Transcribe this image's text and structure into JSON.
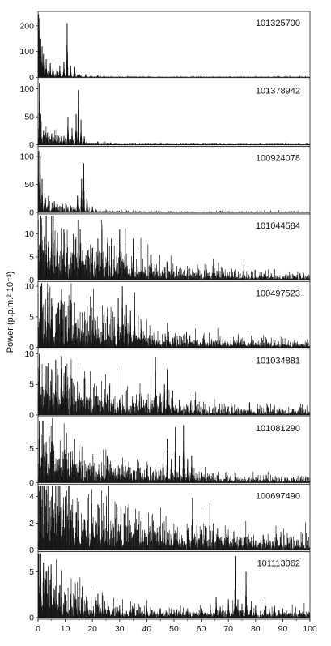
{
  "ylabel": "Power (p.p.m.² 10⁻³)",
  "x_ticks": [
    "0",
    "10",
    "20",
    "30",
    "40",
    "50",
    "60",
    "70",
    "80",
    "90",
    "100"
  ],
  "chart_data": [
    {
      "type": "line",
      "label": "101325700",
      "xlim": [
        0,
        100
      ],
      "ylim": [
        0,
        250
      ],
      "yticks": [
        "0",
        "100",
        "200"
      ],
      "ytick_values": [
        0,
        100,
        200
      ],
      "peaks": [
        [
          0.2,
          245
        ],
        [
          0.6,
          230
        ],
        [
          1.0,
          150
        ],
        [
          1.5,
          120
        ],
        [
          2.0,
          90
        ],
        [
          3.0,
          70
        ],
        [
          4.5,
          55
        ],
        [
          5.5,
          60
        ],
        [
          7.0,
          50
        ],
        [
          8.0,
          45
        ],
        [
          9.5,
          60
        ],
        [
          10.7,
          210
        ],
        [
          12.0,
          45
        ],
        [
          13.5,
          40
        ],
        [
          15.0,
          20
        ],
        [
          17.5,
          12
        ],
        [
          22.0,
          8
        ]
      ],
      "noise": {
        "base": 18,
        "decay": 6,
        "floor": 1.5
      }
    },
    {
      "type": "line",
      "label": "101378942",
      "xlim": [
        0,
        100
      ],
      "ylim": [
        0,
        115
      ],
      "yticks": [
        "0",
        "50",
        "100"
      ],
      "ytick_values": [
        0,
        50,
        100
      ],
      "peaks": [
        [
          0.5,
          110
        ],
        [
          1.0,
          55
        ],
        [
          2.0,
          25
        ],
        [
          3.5,
          22
        ],
        [
          5.0,
          20
        ],
        [
          7.0,
          18
        ],
        [
          9.5,
          16
        ],
        [
          11.0,
          50
        ],
        [
          12.5,
          30
        ],
        [
          14.0,
          55
        ],
        [
          14.8,
          98
        ],
        [
          15.8,
          45
        ],
        [
          17.0,
          15
        ],
        [
          22.0,
          6
        ]
      ],
      "noise": {
        "base": 14,
        "decay": 8,
        "floor": 0.8
      }
    },
    {
      "type": "line",
      "label": "100924078",
      "xlim": [
        0,
        100
      ],
      "ylim": [
        0,
        115
      ],
      "yticks": [
        "0",
        "50",
        "100"
      ],
      "ytick_values": [
        0,
        50,
        100
      ],
      "peaks": [
        [
          0.3,
          110
        ],
        [
          0.8,
          100
        ],
        [
          1.5,
          60
        ],
        [
          2.5,
          35
        ],
        [
          4.0,
          25
        ],
        [
          6.0,
          20
        ],
        [
          9.0,
          15
        ],
        [
          12.0,
          12
        ],
        [
          14.5,
          30
        ],
        [
          16.0,
          60
        ],
        [
          16.8,
          88
        ],
        [
          18.0,
          40
        ],
        [
          20.0,
          10
        ],
        [
          25.0,
          5
        ]
      ],
      "noise": {
        "base": 16,
        "decay": 7,
        "floor": 0.8
      }
    },
    {
      "type": "line",
      "label": "101044584",
      "xlim": [
        0,
        100
      ],
      "ylim": [
        0,
        14
      ],
      "yticks": [
        "0",
        "5",
        "10"
      ],
      "ytick_values": [
        0,
        5,
        10
      ],
      "peaks": [
        [
          1.0,
          14
        ],
        [
          3.0,
          14
        ],
        [
          5.0,
          14
        ],
        [
          7.0,
          12
        ],
        [
          9.5,
          11
        ],
        [
          13.0,
          10
        ],
        [
          15.5,
          11
        ],
        [
          18.0,
          8
        ],
        [
          20.0,
          7
        ],
        [
          22.0,
          9
        ],
        [
          23.5,
          11
        ],
        [
          25.5,
          8
        ],
        [
          27.0,
          9
        ],
        [
          29.0,
          8
        ],
        [
          30.0,
          11
        ],
        [
          32.0,
          8
        ],
        [
          35.0,
          9
        ],
        [
          38.0,
          2
        ],
        [
          42.0,
          1.2
        ]
      ],
      "noise": {
        "base": 5.5,
        "decay": 30,
        "floor": 0.3
      }
    },
    {
      "type": "line",
      "label": "100497523",
      "xlim": [
        0,
        100
      ],
      "ylim": [
        0,
        10.5
      ],
      "yticks": [
        "0",
        "5",
        "10"
      ],
      "ytick_values": [
        0,
        5,
        10
      ],
      "peaks": [
        [
          1.0,
          10
        ],
        [
          3.5,
          9
        ],
        [
          5.0,
          8
        ],
        [
          7.0,
          7
        ],
        [
          8.5,
          6.5
        ],
        [
          10.0,
          5
        ],
        [
          14.0,
          4
        ],
        [
          20.0,
          3
        ],
        [
          24.0,
          4
        ],
        [
          28.0,
          5
        ],
        [
          29.5,
          8
        ],
        [
          31.0,
          10
        ],
        [
          32.5,
          7
        ],
        [
          34.0,
          6
        ],
        [
          35.5,
          9
        ],
        [
          38.0,
          3
        ],
        [
          42.0,
          2
        ],
        [
          48.0,
          1
        ]
      ],
      "noise": {
        "base": 4,
        "decay": 30,
        "floor": 0.3
      }
    },
    {
      "type": "line",
      "label": "101034881",
      "xlim": [
        0,
        100
      ],
      "ylim": [
        0,
        10.5
      ],
      "yticks": [
        "0",
        "5",
        "10"
      ],
      "ytick_values": [
        0,
        5,
        10
      ],
      "peaks": [
        [
          0.5,
          10
        ],
        [
          3.0,
          8
        ],
        [
          5.0,
          7.5
        ],
        [
          6.5,
          9
        ],
        [
          8.5,
          6
        ],
        [
          10.0,
          8
        ],
        [
          12.5,
          6
        ],
        [
          15.0,
          5
        ],
        [
          18.0,
          4.5
        ],
        [
          22.0,
          3
        ],
        [
          27.0,
          2
        ],
        [
          30.0,
          2.5
        ],
        [
          35.0,
          2
        ],
        [
          38.0,
          3
        ],
        [
          40.0,
          2.5
        ],
        [
          41.5,
          4
        ],
        [
          43.2,
          9.5
        ],
        [
          45.0,
          3.5
        ],
        [
          46.5,
          5
        ],
        [
          47.5,
          7.5
        ],
        [
          49.5,
          4
        ],
        [
          52.0,
          2.5
        ],
        [
          55.0,
          1.5
        ]
      ],
      "noise": {
        "base": 3.5,
        "decay": 25,
        "floor": 0.4
      }
    },
    {
      "type": "line",
      "label": "101081290",
      "xlim": [
        0,
        100
      ],
      "ylim": [
        0,
        9.5
      ],
      "yticks": [
        "0",
        "5"
      ],
      "ytick_values": [
        0,
        5
      ],
      "peaks": [
        [
          0.5,
          9
        ],
        [
          1.5,
          7
        ],
        [
          3.0,
          6
        ],
        [
          5.0,
          5
        ],
        [
          7.0,
          4
        ],
        [
          10.0,
          3.5
        ],
        [
          12.0,
          4.5
        ],
        [
          15.0,
          3
        ],
        [
          19.5,
          4
        ],
        [
          25.0,
          2
        ],
        [
          30.0,
          2
        ],
        [
          35.0,
          1.8
        ],
        [
          40.0,
          2
        ],
        [
          44.5,
          3
        ],
        [
          46.0,
          5
        ],
        [
          47.5,
          6.5
        ],
        [
          49.0,
          3.5
        ],
        [
          50.5,
          8.2
        ],
        [
          52.0,
          4
        ],
        [
          53.5,
          8.5
        ],
        [
          55.0,
          3.5
        ],
        [
          56.5,
          4
        ],
        [
          60.0,
          1.5
        ]
      ],
      "noise": {
        "base": 3.2,
        "decay": 25,
        "floor": 0.3
      }
    },
    {
      "type": "line",
      "label": "100697490",
      "xlim": [
        0,
        100
      ],
      "ylim": [
        0,
        4.8
      ],
      "yticks": [
        "0",
        "2",
        "4"
      ],
      "ytick_values": [
        0,
        2,
        4
      ],
      "peaks": [
        [
          1.0,
          4.8
        ],
        [
          3.0,
          4.5
        ],
        [
          5.0,
          4
        ],
        [
          6.5,
          4.8
        ],
        [
          8.0,
          4.8
        ],
        [
          10.0,
          4
        ],
        [
          12.0,
          3
        ],
        [
          14.0,
          2.8
        ],
        [
          17.0,
          2.3
        ],
        [
          20.0,
          2
        ],
        [
          25.0,
          1.6
        ],
        [
          30.0,
          1.4
        ],
        [
          35.0,
          1.2
        ],
        [
          40.0,
          1
        ],
        [
          45.0,
          1.1
        ],
        [
          50.0,
          1.2
        ],
        [
          55.0,
          1.5
        ],
        [
          56.8,
          3.9
        ],
        [
          58.5,
          2
        ],
        [
          60.0,
          1.5
        ],
        [
          61.5,
          1.8
        ],
        [
          63.2,
          3.5
        ],
        [
          64.5,
          2
        ],
        [
          66.0,
          1.6
        ],
        [
          68.0,
          1.3
        ],
        [
          70.0,
          1.1
        ],
        [
          72.0,
          1.4
        ],
        [
          76.0,
          0.9
        ],
        [
          80.0,
          0.7
        ]
      ],
      "noise": {
        "base": 2.2,
        "decay": 35,
        "floor": 0.3
      }
    },
    {
      "type": "line",
      "label": "101113062",
      "xlim": [
        0,
        100
      ],
      "ylim": [
        0,
        7
      ],
      "yticks": [
        "0",
        "5"
      ],
      "ytick_values": [
        0,
        5
      ],
      "peaks": [
        [
          0.3,
          7
        ],
        [
          1.0,
          7
        ],
        [
          2.0,
          6
        ],
        [
          3.0,
          5
        ],
        [
          4.8,
          5.8
        ],
        [
          6.0,
          3
        ],
        [
          8.0,
          3.5
        ],
        [
          10.0,
          2.5
        ],
        [
          12.0,
          2
        ],
        [
          14.0,
          2
        ],
        [
          16.0,
          2
        ],
        [
          22.0,
          2.6
        ],
        [
          26.0,
          1.2
        ],
        [
          30.0,
          1.3
        ],
        [
          35.0,
          1
        ],
        [
          40.0,
          1
        ],
        [
          45.0,
          1
        ],
        [
          50.0,
          0.9
        ],
        [
          55.0,
          1
        ],
        [
          60.0,
          1
        ],
        [
          65.5,
          2.3
        ],
        [
          67.0,
          1.2
        ],
        [
          70.0,
          2
        ],
        [
          72.5,
          6.7
        ],
        [
          73.5,
          2
        ],
        [
          75.0,
          1.5
        ],
        [
          76.5,
          5
        ],
        [
          78.5,
          1.8
        ],
        [
          80.0,
          1.3
        ],
        [
          83.5,
          2.2
        ],
        [
          87.0,
          1.2
        ],
        [
          90.0,
          1.0
        ]
      ],
      "noise": {
        "base": 2.5,
        "decay": 12,
        "floor": 0.35
      }
    }
  ]
}
